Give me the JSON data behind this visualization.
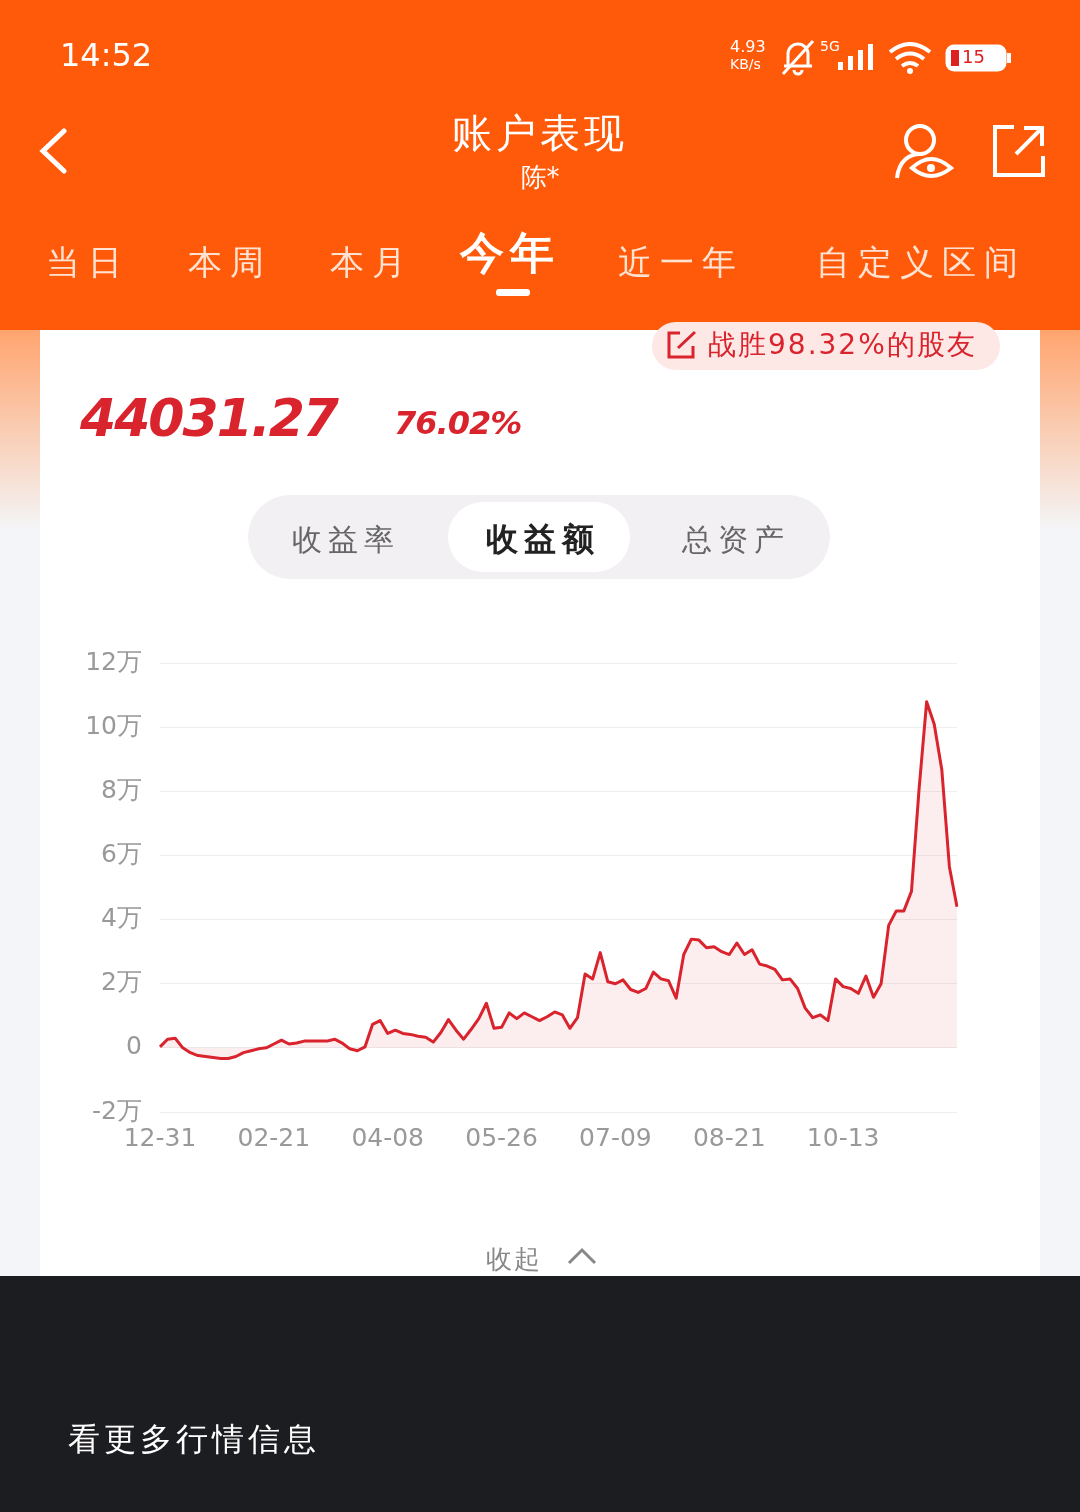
{
  "chart_data": {
    "type": "area",
    "title": "账户表现",
    "subtitle": "陈*",
    "annotations": [
      "14:52",
      "4.93",
      "KB/s",
      "5G",
      "15",
      "当日",
      "本周",
      "本月",
      "今年",
      "近一年",
      "自定义区间",
      "战胜98.32%的股友",
      "44031.27",
      "76.02%",
      "收益率",
      "收益额",
      "总资产",
      "收起",
      "看更多行情信息"
    ],
    "categories": [
      "12-31",
      null,
      null,
      null,
      null,
      null,
      null,
      null,
      null,
      null,
      null,
      null,
      null,
      null,
      null,
      "02-21",
      null,
      null,
      null,
      null,
      null,
      null,
      null,
      null,
      null,
      null,
      null,
      null,
      null,
      null,
      "04-08",
      null,
      null,
      null,
      null,
      null,
      null,
      null,
      null,
      null,
      null,
      null,
      null,
      null,
      null,
      "05-26",
      null,
      null,
      null,
      null,
      null,
      null,
      null,
      null,
      null,
      null,
      null,
      null,
      null,
      null,
      "07-09",
      null,
      null,
      null,
      null,
      null,
      null,
      null,
      null,
      null,
      null,
      null,
      null,
      null,
      null,
      "08-21",
      null,
      null,
      null,
      null,
      null,
      null,
      null,
      null,
      null,
      null,
      null,
      null,
      null,
      null,
      "10-13",
      null,
      null,
      null,
      null,
      null,
      null,
      null,
      null,
      null,
      null,
      null,
      null,
      null,
      null,
      null
    ],
    "series": [
      {
        "color": "#d9232d",
        "values": [
          0.03,
          0.27,
          0.3,
          0,
          -0.15,
          -0.24,
          -0.27,
          -0.3,
          -0.33,
          -0.33,
          -0.27,
          -0.15,
          -0.09,
          -0.03,
          0,
          0.12,
          0.24,
          0.12,
          0.15,
          0.21,
          0.21,
          0.21,
          0.21,
          0.27,
          0.15,
          -0.03,
          -0.09,
          0.03,
          0.73,
          0.85,
          0.45,
          0.55,
          0.45,
          0.42,
          0.36,
          0.33,
          0.18,
          0.48,
          0.88,
          0.55,
          0.27,
          0.58,
          0.91,
          1.39,
          0.61,
          0.64,
          1.09,
          0.91,
          1.09,
          0.97,
          0.85,
          0.97,
          1.12,
          1.03,
          0.61,
          0.94,
          2.3,
          2.15,
          2.97,
          2.06,
          2,
          2.12,
          1.82,
          1.73,
          1.85,
          2.36,
          2.15,
          2.09,
          1.55,
          2.91,
          3.39,
          3.36,
          3.12,
          3.15,
          3,
          2.91,
          3.27,
          2.91,
          3.06,
          2.61,
          2.55,
          2.45,
          2.12,
          2.15,
          1.85,
          1.24,
          0.94,
          1.03,
          0.85,
          2.15,
          1.91,
          1.85,
          1.7,
          2.24,
          1.58,
          2,
          3.82,
          4.27,
          4.27,
          4.88,
          8.06,
          10.79,
          10.09,
          8.67,
          5.64,
          4.4
        ]
      }
    ],
    "ylim": [
      -2,
      12
    ],
    "yticks": [
      {
        "value": -2,
        "label": "-2万"
      },
      0,
      {
        "value": 2,
        "label": "2万"
      },
      {
        "value": 4,
        "label": "4万"
      },
      {
        "value": 6,
        "label": "6万"
      },
      {
        "value": 8,
        "label": "8万"
      },
      {
        "value": 10,
        "label": "10万"
      },
      {
        "value": 12,
        "label": "12万"
      }
    ],
    "grid": "y",
    "legend": false,
    "marker": "none",
    "line_style": "solid"
  }
}
